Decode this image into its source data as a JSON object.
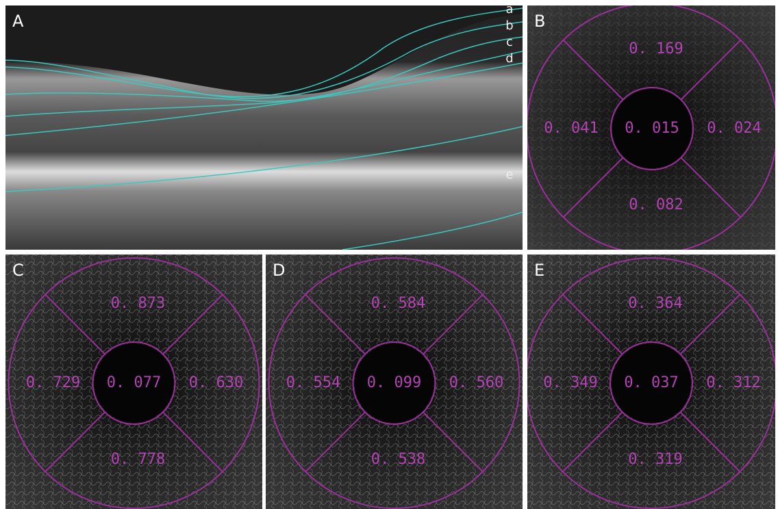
{
  "panels": [
    {
      "label": "A",
      "layers": [
        "a",
        "b",
        "c",
        "d",
        "e"
      ]
    },
    {
      "label": "B",
      "top": "0. 169",
      "left": "0. 041",
      "center": "0. 015",
      "right": "0. 024",
      "bottom": "0. 082"
    },
    {
      "label": "C",
      "top": "0. 873",
      "left": "0. 729",
      "center": "0. 077",
      "right": "0. 630",
      "bottom": "0. 778"
    },
    {
      "label": "D",
      "top": "0. 584",
      "left": "0. 554",
      "center": "0. 099",
      "right": "0. 560",
      "bottom": "0. 538"
    },
    {
      "label": "E",
      "top": "0. 364",
      "left": "0. 349",
      "center": "0. 037",
      "right": "0. 312",
      "bottom": "0. 319"
    }
  ]
}
